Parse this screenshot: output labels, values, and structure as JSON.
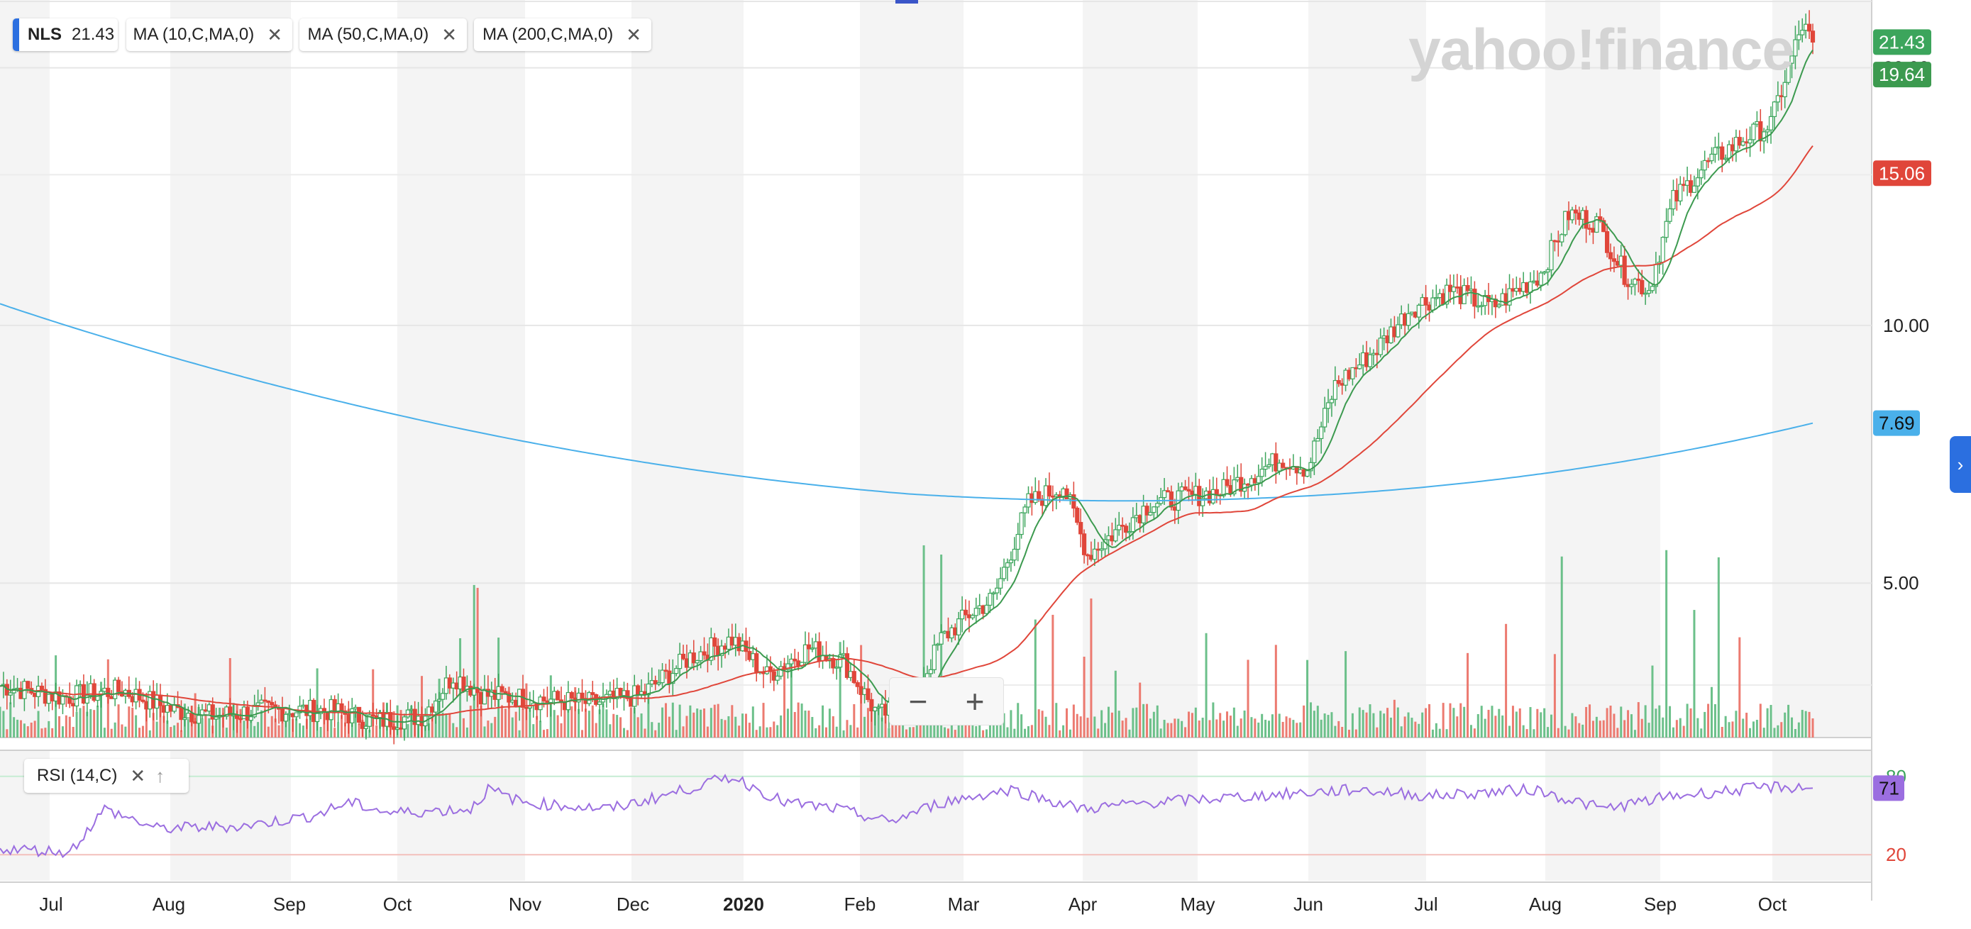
{
  "legend": {
    "symbol": "NLS",
    "price": "21.43",
    "indicators": [
      {
        "label": "MA (10,C,MA,0)",
        "color": "#3c9a4f"
      },
      {
        "label": "MA (50,C,MA,0)",
        "color": "#e0463a"
      },
      {
        "label": "MA (200,C,MA,0)",
        "color": "#4ab0ea"
      }
    ],
    "close_icon": "close-icon"
  },
  "rsi_legend": {
    "label": "RSI (14,C)",
    "close_icon": "close-icon",
    "up_icon": "arrow-up-icon"
  },
  "watermark": "yahoo!finance",
  "zoom": {
    "minus": "−",
    "plus": "+"
  },
  "side_button": "›",
  "chart_data": {
    "type": "candlestick",
    "x_tick_labels": [
      "Jul",
      "Aug",
      "Sep",
      "Oct",
      "Nov",
      "Dec",
      "2020",
      "Feb",
      "Mar",
      "Apr",
      "May",
      "Jun",
      "Jul",
      "Aug",
      "Sep",
      "Oct"
    ],
    "y_tick_labels": [
      "5.00",
      "10.00",
      "20.00"
    ],
    "y_ticks": [
      5,
      10,
      20
    ],
    "y_scale": "log",
    "ylim": [
      3.3,
      24
    ],
    "price_badges": [
      {
        "label": "21.43",
        "value": 21.43,
        "color": "#3ca55c",
        "series": "price"
      },
      {
        "label": "19.64",
        "value": 19.64,
        "color": "#3c9a4f",
        "series": "ma10"
      },
      {
        "label": "15.06",
        "value": 15.06,
        "color": "#e0463a",
        "series": "ma50"
      },
      {
        "label": "7.69",
        "value": 7.69,
        "color": "#4ab0ea",
        "series": "ma200"
      }
    ],
    "series_colors": {
      "up": "#3ca55c",
      "down": "#e0463a",
      "ma10": "#3c9a4f",
      "ma50": "#e0463a",
      "ma200": "#4ab0ea",
      "rsi": "#9b6ee0",
      "volume_up": "#6cc08a",
      "volume_down": "#ec7a70"
    },
    "close_keypoints": [
      [
        0,
        3.8
      ],
      [
        18,
        3.68
      ],
      [
        35,
        3.75
      ],
      [
        50,
        3.55
      ],
      [
        62,
        3.5
      ],
      [
        75,
        3.55
      ],
      [
        95,
        3.55
      ],
      [
        108,
        3.45
      ],
      [
        121,
        3.5
      ],
      [
        130,
        3.9
      ],
      [
        139,
        3.7
      ],
      [
        158,
        3.65
      ],
      [
        170,
        3.62
      ],
      [
        184,
        3.7
      ],
      [
        198,
        4.1
      ],
      [
        210,
        4.3
      ],
      [
        220,
        3.9
      ],
      [
        232,
        4.2
      ],
      [
        242,
        4.05
      ],
      [
        252,
        3.5
      ],
      [
        262,
        3.65
      ],
      [
        270,
        4.3
      ],
      [
        278,
        4.6
      ],
      [
        285,
        4.8
      ],
      [
        295,
        6.2
      ],
      [
        305,
        6.5
      ],
      [
        312,
        5.4
      ],
      [
        330,
        6.2
      ],
      [
        350,
        6.4
      ],
      [
        368,
        7.0
      ],
      [
        375,
        6.8
      ],
      [
        383,
        8.5
      ],
      [
        395,
        9.4
      ],
      [
        405,
        10.5
      ],
      [
        416,
        11.0
      ],
      [
        428,
        10.5
      ],
      [
        442,
        11.5
      ],
      [
        450,
        13.5
      ],
      [
        458,
        13.2
      ],
      [
        466,
        11.5
      ],
      [
        473,
        11.0
      ],
      [
        480,
        14.0
      ],
      [
        490,
        15.5
      ],
      [
        500,
        16.5
      ],
      [
        508,
        17.2
      ],
      [
        513,
        20.0
      ],
      [
        517,
        22.4
      ],
      [
        520,
        21.43
      ]
    ],
    "ma10_end": 19.64,
    "ma50_end": 15.06,
    "ma200_end": 7.69,
    "rsi": {
      "label": "RSI (14,C)",
      "y_tick_labels": [
        "20",
        "80"
      ],
      "y_ticks": [
        20,
        80
      ],
      "ylim": [
        0,
        100
      ],
      "last": 71,
      "last_label": "71",
      "keypoints": [
        [
          0,
          25
        ],
        [
          20,
          22
        ],
        [
          30,
          55
        ],
        [
          45,
          40
        ],
        [
          70,
          42
        ],
        [
          90,
          50
        ],
        [
          100,
          60
        ],
        [
          112,
          52
        ],
        [
          135,
          55
        ],
        [
          140,
          70
        ],
        [
          150,
          60
        ],
        [
          175,
          55
        ],
        [
          190,
          65
        ],
        [
          210,
          80
        ],
        [
          225,
          60
        ],
        [
          240,
          55
        ],
        [
          255,
          45
        ],
        [
          270,
          60
        ],
        [
          290,
          70
        ],
        [
          310,
          55
        ],
        [
          330,
          60
        ],
        [
          360,
          65
        ],
        [
          390,
          70
        ],
        [
          410,
          65
        ],
        [
          440,
          70
        ],
        [
          460,
          55
        ],
        [
          480,
          65
        ],
        [
          500,
          70
        ],
        [
          510,
          72
        ],
        [
          520,
          71
        ]
      ]
    }
  }
}
